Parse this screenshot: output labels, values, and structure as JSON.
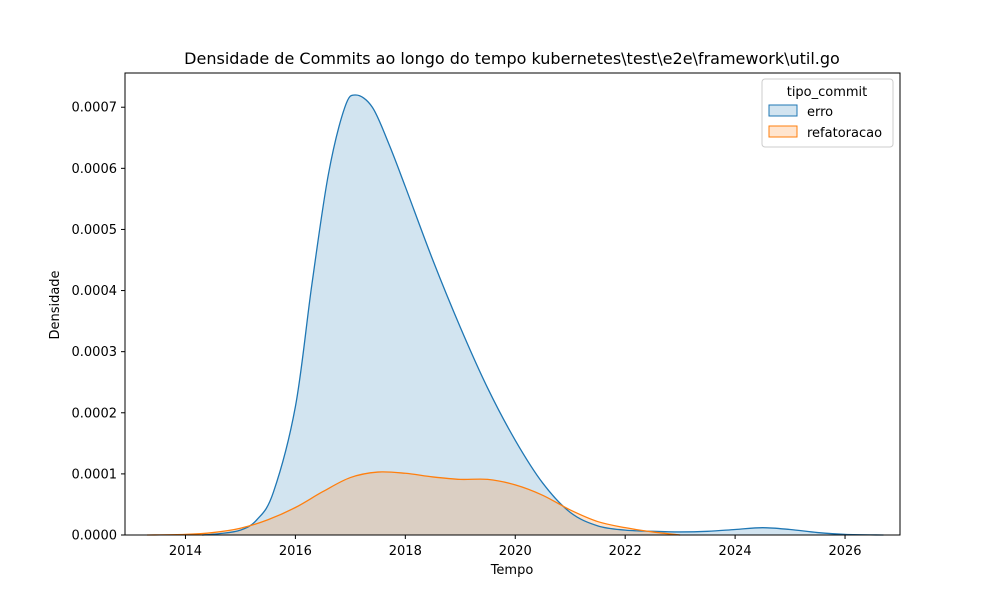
{
  "chart_data": {
    "type": "area",
    "title": "Densidade de Commits ao longo do tempo kubernetes\\test\\e2e\\framework\\util.go",
    "xlabel": "Tempo",
    "ylabel": "Densidade",
    "xlim": [
      2012.9,
      2027.0
    ],
    "ylim": [
      0,
      0.000756
    ],
    "x_ticks": [
      2014,
      2016,
      2018,
      2020,
      2022,
      2024,
      2026
    ],
    "x_tick_labels": [
      "2014",
      "2016",
      "2018",
      "2020",
      "2022",
      "2024",
      "2026"
    ],
    "y_ticks": [
      0,
      0.0001,
      0.0002,
      0.0003,
      0.0004,
      0.0005,
      0.0006,
      0.0007
    ],
    "y_tick_labels": [
      "0.0000",
      "0.0001",
      "0.0002",
      "0.0003",
      "0.0004",
      "0.0005",
      "0.0006",
      "0.0007"
    ],
    "grid": false,
    "legend": {
      "title": "tipo_commit",
      "placement": "top-right"
    },
    "series": [
      {
        "name": "erro",
        "color": "#1f77b4",
        "fill": "#1f77b4",
        "fill_opacity": 0.2,
        "x": [
          2014.3,
          2014.6,
          2015.0,
          2015.3,
          2015.6,
          2016.0,
          2016.3,
          2016.6,
          2016.9,
          2017.1,
          2017.4,
          2017.7,
          2018.0,
          2018.5,
          2019.0,
          2019.5,
          2020.0,
          2020.5,
          2021.0,
          2021.5,
          2022.0,
          2022.5,
          2023.0,
          2023.5,
          2024.0,
          2024.5,
          2025.0,
          2025.5,
          2026.0,
          2026.7
        ],
        "y": [
          0.0,
          2e-06,
          8e-06,
          2.5e-05,
          7e-05,
          0.00021,
          0.00041,
          0.00059,
          0.0007,
          0.00072,
          0.0007,
          0.00064,
          0.00057,
          0.00045,
          0.00034,
          0.00024,
          0.000155,
          8.5e-05,
          3.7e-05,
          1.5e-05,
          8e-06,
          6e-06,
          5e-06,
          6e-06,
          9e-06,
          1.2e-05,
          9e-06,
          4e-06,
          1e-06,
          0.0
        ]
      },
      {
        "name": "refatoracao",
        "color": "#ff7f0e",
        "fill": "#ff7f0e",
        "fill_opacity": 0.2,
        "x": [
          2013.3,
          2014.0,
          2014.5,
          2015.0,
          2015.5,
          2016.0,
          2016.5,
          2017.0,
          2017.5,
          2018.0,
          2018.5,
          2019.0,
          2019.5,
          2020.0,
          2020.5,
          2021.0,
          2021.5,
          2022.0,
          2022.5,
          2023.0
        ],
        "y": [
          0.0,
          1e-06,
          4e-06,
          1.1e-05,
          2.5e-05,
          4.5e-05,
          7.1e-05,
          9.4e-05,
          0.000103,
          0.000101,
          9.5e-05,
          9.1e-05,
          9.1e-05,
          8.2e-05,
          6.5e-05,
          4.1e-05,
          2.2e-05,
          1.2e-05,
          5e-06,
          0.0
        ]
      }
    ]
  }
}
